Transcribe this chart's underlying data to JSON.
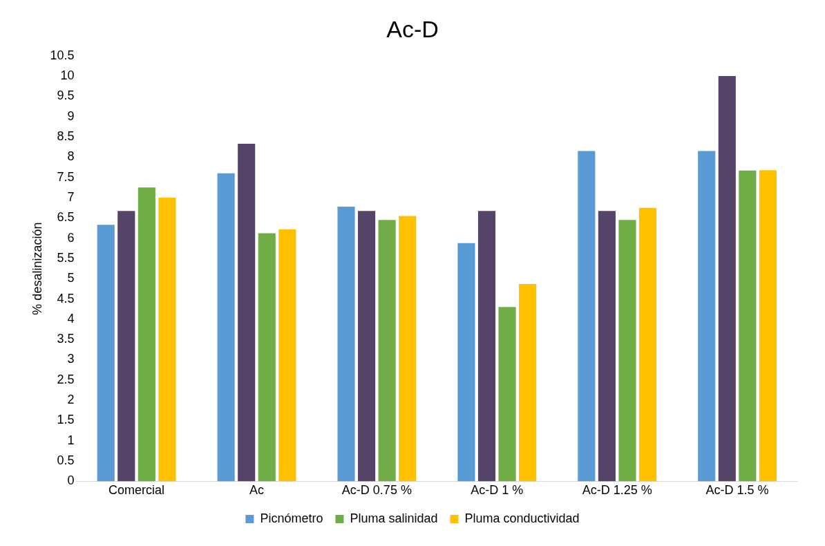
{
  "chart_data": {
    "type": "bar",
    "title": "Ac-D",
    "ylabel": "% desalinización",
    "categories": [
      "Comercial",
      "Ac",
      "Ac-D 0.75 %",
      "Ac-D 1 %",
      "Ac-D 1.25 %",
      "Ac-D 1.5 %"
    ],
    "series": [
      {
        "name": "Picnómetro",
        "color": "#5b9bd5",
        "values": [
          6.33,
          7.6,
          6.78,
          5.88,
          8.15,
          8.15
        ]
      },
      {
        "color": "#554468",
        "values": [
          6.67,
          8.33,
          6.67,
          6.67,
          6.67,
          10.0
        ]
      },
      {
        "name": "Pluma salinidad",
        "color": "#70ad47",
        "values": [
          7.25,
          6.12,
          6.45,
          4.3,
          6.45,
          7.67
        ]
      },
      {
        "name": "Pluma conductividad",
        "color": "#ffc000",
        "values": [
          7.0,
          6.22,
          6.55,
          4.87,
          6.75,
          7.68
        ]
      }
    ],
    "ylim": [
      0,
      10.5
    ],
    "yticks": [
      0,
      0.5,
      1,
      1.5,
      2,
      2.5,
      3,
      3.5,
      4,
      4.5,
      5,
      5.5,
      6,
      6.5,
      7,
      7.5,
      8,
      8.5,
      9,
      9.5,
      10,
      10.5
    ],
    "grid": false,
    "legend": "bottom"
  }
}
